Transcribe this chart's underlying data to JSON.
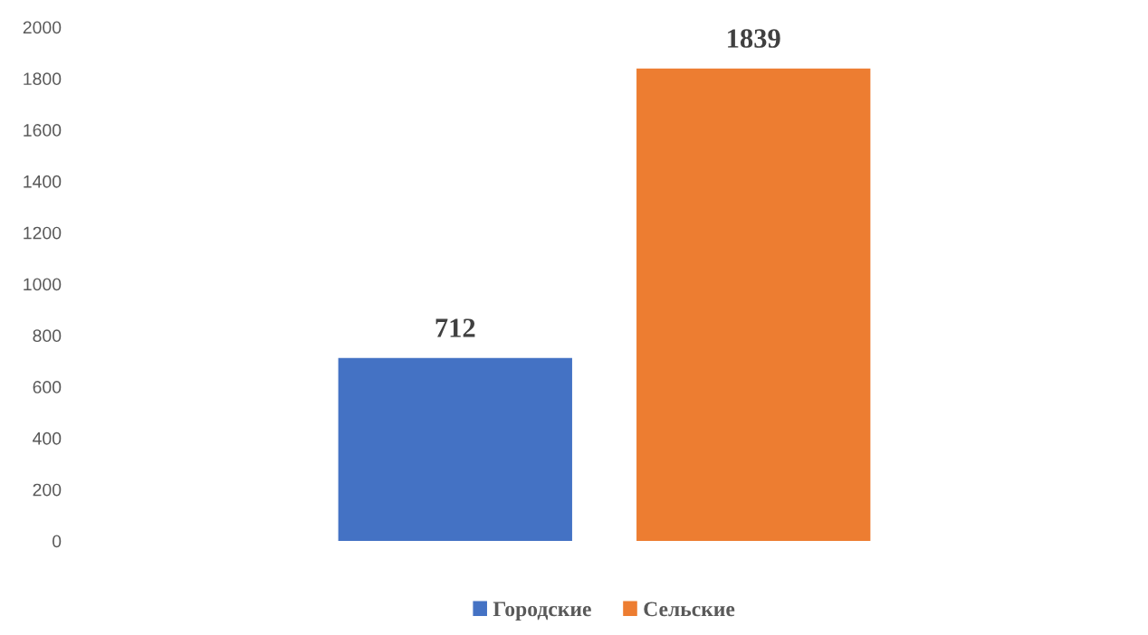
{
  "chart_data": {
    "type": "bar",
    "categories": [
      null
    ],
    "series": [
      {
        "name": "Городские",
        "color": "#4472c4",
        "values": [
          712
        ]
      },
      {
        "name": "Сельские",
        "color": "#ed7d31",
        "values": [
          1839
        ]
      }
    ],
    "ylim": [
      0,
      2000
    ],
    "yticks": [
      0,
      200,
      400,
      600,
      800,
      1000,
      1200,
      1400,
      1600,
      1800,
      2000
    ],
    "data_labels": true,
    "grid": false,
    "legend": "bottom"
  }
}
